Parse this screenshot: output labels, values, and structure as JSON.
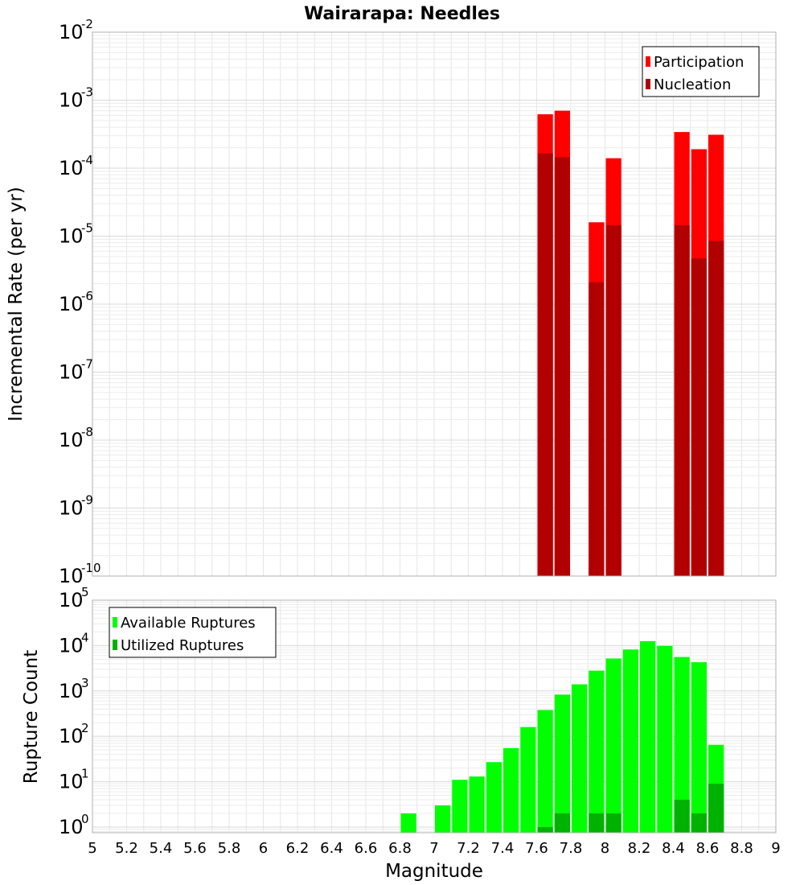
{
  "chart_data": [
    {
      "type": "bar",
      "title": "Wairarapa: Needles",
      "xlabel": "",
      "ylabel": "Incremental Rate (per yr)",
      "yscale": "log",
      "ylim": [
        1e-10,
        0.01
      ],
      "xlim": [
        5,
        9
      ],
      "grid": true,
      "legend_position": "top-right",
      "colors": {
        "Participation": "#ff0000",
        "Nucleation": "#b20000"
      },
      "y_ticks": [
        {
          "base": "10",
          "exp": "-10",
          "value": 1e-10
        },
        {
          "base": "10",
          "exp": "-9",
          "value": 1e-09
        },
        {
          "base": "10",
          "exp": "-8",
          "value": 1e-08
        },
        {
          "base": "10",
          "exp": "-7",
          "value": 1e-07
        },
        {
          "base": "10",
          "exp": "-6",
          "value": 1e-06
        },
        {
          "base": "10",
          "exp": "-5",
          "value": 1e-05
        },
        {
          "base": "10",
          "exp": "-4",
          "value": 0.0001
        },
        {
          "base": "10",
          "exp": "-3",
          "value": 0.001
        },
        {
          "base": "10",
          "exp": "-2",
          "value": 0.01
        }
      ],
      "series": [
        {
          "name": "Participation",
          "x": [
            7.65,
            7.75,
            7.95,
            8.05,
            8.45,
            8.55,
            8.65
          ],
          "values": [
            0.00062,
            0.0007,
            1.6e-05,
            0.00014,
            0.00034,
            0.00019,
            0.00031
          ]
        },
        {
          "name": "Nucleation",
          "x": [
            7.65,
            7.75,
            7.95,
            8.05,
            8.45,
            8.55,
            8.65
          ],
          "values": [
            0.000165,
            0.000145,
            2.1e-06,
            1.45e-05,
            1.45e-05,
            4.7e-06,
            8.5e-06
          ]
        }
      ]
    },
    {
      "type": "bar",
      "title": "",
      "xlabel": "Magnitude",
      "ylabel": "Rupture Count",
      "yscale": "log",
      "ylim": [
        0.75,
        100000
      ],
      "xlim": [
        5,
        9
      ],
      "grid": true,
      "legend_position": "top-left",
      "colors": {
        "Available Ruptures": "#00ff00",
        "Utilized Ruptures": "#00b200"
      },
      "y_ticks": [
        {
          "base": "10",
          "exp": "0",
          "value": 1
        },
        {
          "base": "10",
          "exp": "1",
          "value": 10
        },
        {
          "base": "10",
          "exp": "2",
          "value": 100
        },
        {
          "base": "10",
          "exp": "3",
          "value": 1000
        },
        {
          "base": "10",
          "exp": "4",
          "value": 10000
        },
        {
          "base": "10",
          "exp": "5",
          "value": 100000
        }
      ],
      "x_ticks": [
        "5",
        "5.2",
        "5.4",
        "5.6",
        "5.8",
        "6",
        "6.2",
        "6.4",
        "6.6",
        "6.8",
        "7",
        "7.2",
        "7.4",
        "7.6",
        "7.8",
        "8",
        "8.2",
        "8.4",
        "8.6",
        "8.8",
        "9"
      ],
      "series": [
        {
          "name": "Available Ruptures",
          "x": [
            6.85,
            7.05,
            7.15,
            7.25,
            7.35,
            7.45,
            7.55,
            7.65,
            7.75,
            7.85,
            7.95,
            8.05,
            8.15,
            8.25,
            8.35,
            8.45,
            8.55,
            8.65
          ],
          "values": [
            2,
            3,
            11,
            13,
            27,
            55,
            160,
            380,
            830,
            1400,
            2800,
            5200,
            8200,
            12500,
            9800,
            5600,
            4300,
            65
          ]
        },
        {
          "name": "Utilized Ruptures",
          "x": [
            7.65,
            7.75,
            7.95,
            8.05,
            8.45,
            8.55,
            8.65
          ],
          "values": [
            1,
            2,
            2,
            2,
            4,
            2,
            9
          ]
        }
      ]
    }
  ]
}
